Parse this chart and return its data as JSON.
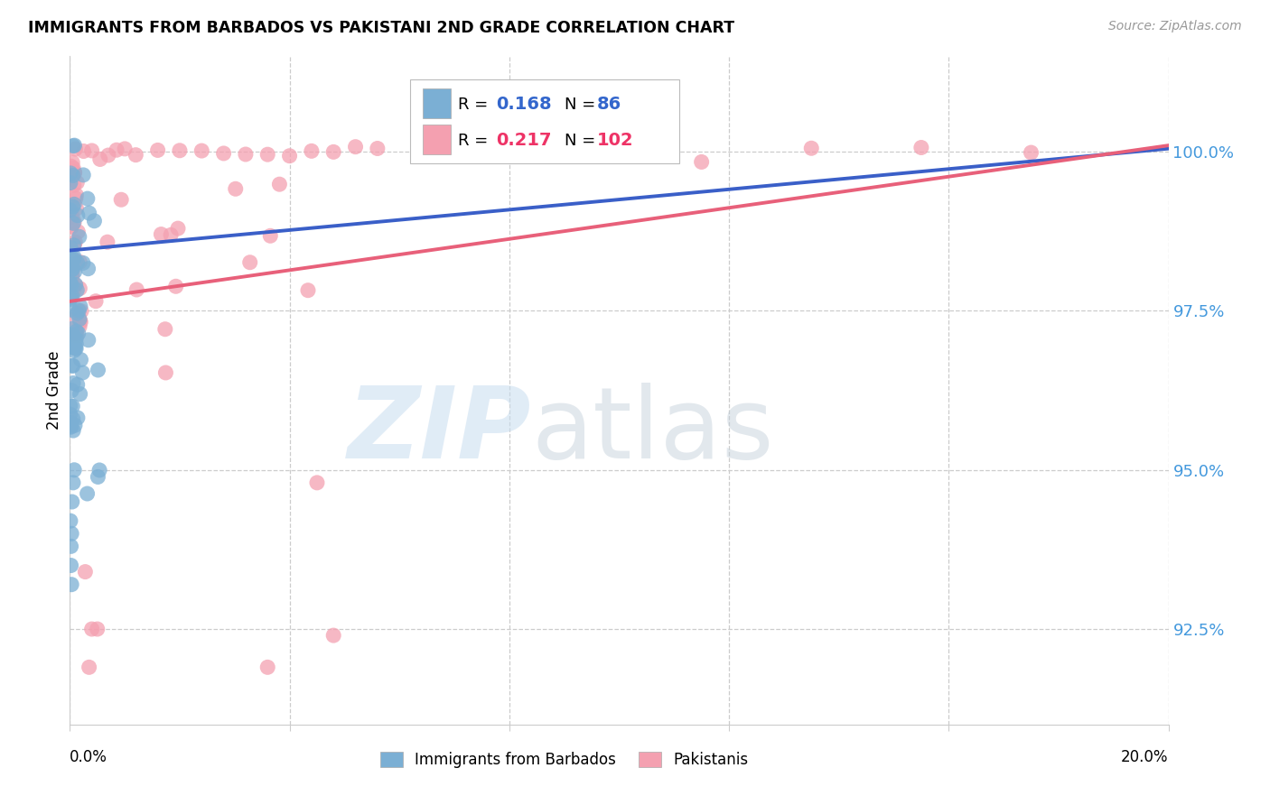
{
  "title": "IMMIGRANTS FROM BARBADOS VS PAKISTANI 2ND GRADE CORRELATION CHART",
  "source": "Source: ZipAtlas.com",
  "ylabel": "2nd Grade",
  "ytick_values": [
    92.5,
    95.0,
    97.5,
    100.0
  ],
  "xlim": [
    0.0,
    20.0
  ],
  "ylim": [
    91.0,
    101.5
  ],
  "legend_blue_label": "Immigrants from Barbados",
  "legend_pink_label": "Pakistanis",
  "blue_R": 0.168,
  "blue_N": 86,
  "pink_R": 0.217,
  "pink_N": 102,
  "blue_color": "#7BAFD4",
  "pink_color": "#F4A0B0",
  "blue_line_color": "#3A5FC8",
  "pink_line_color": "#E8607A",
  "blue_line_x": [
    0.0,
    20.0
  ],
  "blue_line_y": [
    98.45,
    100.05
  ],
  "pink_line_x": [
    0.0,
    20.0
  ],
  "pink_line_y": [
    97.65,
    100.1
  ],
  "blue_seed": 10,
  "pink_seed": 20
}
